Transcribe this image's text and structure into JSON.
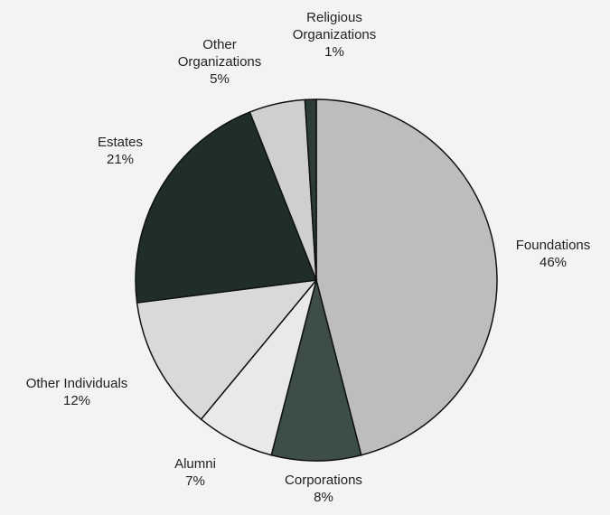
{
  "chart_data": {
    "type": "pie",
    "categories": [
      "Foundations",
      "Corporations",
      "Alumni",
      "Other Individuals",
      "Estates",
      "Other Organizations",
      "Religious Organizations"
    ],
    "values": [
      46,
      8,
      7,
      12,
      21,
      5,
      1
    ],
    "value_labels": [
      "46%",
      "8%",
      "7%",
      "12%",
      "21%",
      "5%",
      "1%"
    ],
    "colors": [
      "#bdbdbb",
      "#3d4d4a",
      "#e9e9e7",
      "#d9d9d7",
      "#1f2e2b",
      "#cfcfcd",
      "#2b3b38"
    ]
  }
}
